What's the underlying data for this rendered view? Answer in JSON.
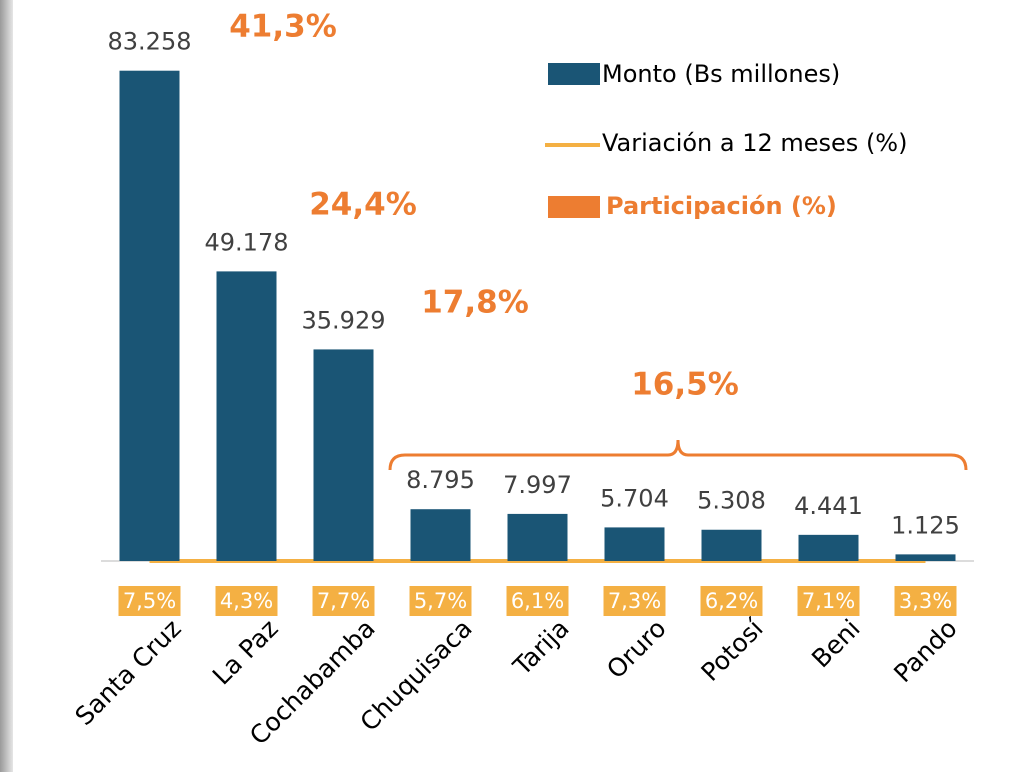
{
  "chart_data": {
    "type": "bar",
    "categories": [
      "Santa Cruz",
      "La Paz",
      "Cochabamba",
      "Chuquisaca",
      "Tarija",
      "Oruro",
      "Potosí",
      "Beni",
      "Pando"
    ],
    "ylim": [
      0,
      90000
    ],
    "series": [
      {
        "name": "Monto (Bs millones)",
        "color": "#1a5575",
        "values": [
          83258,
          49178,
          35929,
          8795,
          7997,
          5704,
          5308,
          4441,
          1125
        ],
        "value_labels": [
          "83.258",
          "49.178",
          "35.929",
          "8.795",
          "7.997",
          "5.704",
          "5.308",
          "4.441",
          "1.125"
        ]
      },
      {
        "name": "Variación a 12 meses (%)",
        "color": "#f4b043",
        "values": [
          7.5,
          4.3,
          7.7,
          5.7,
          6.1,
          7.3,
          6.2,
          7.1,
          3.3
        ],
        "value_labels": [
          "7,5%",
          "4,3%",
          "7,7%",
          "5,7%",
          "6,1%",
          "7,3%",
          "6,2%",
          "7,1%",
          "3,3%"
        ]
      }
    ],
    "participation": {
      "name": "Participación (%)",
      "color": "#ed7d31",
      "values": [
        41.3,
        24.4,
        17.8,
        16.5
      ],
      "value_labels": [
        "41,3%",
        "24,4%",
        "17,8%",
        "16,5%"
      ]
    }
  }
}
